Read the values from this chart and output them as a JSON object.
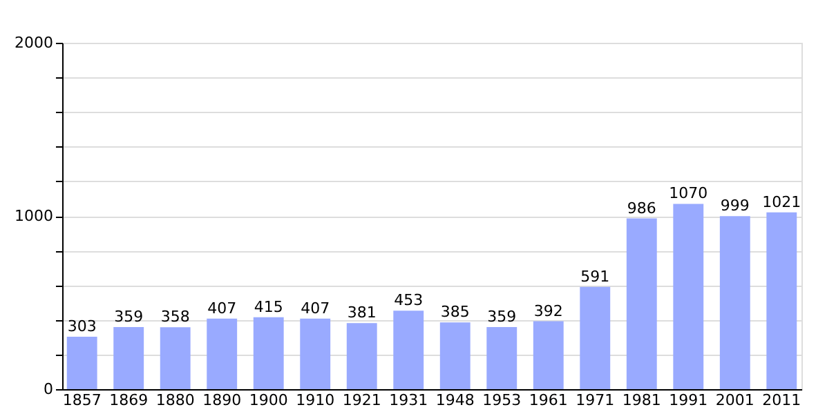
{
  "chart_data": {
    "type": "bar",
    "categories": [
      "1857",
      "1869",
      "1880",
      "1890",
      "1900",
      "1910",
      "1921",
      "1931",
      "1948",
      "1953",
      "1961",
      "1971",
      "1981",
      "1991",
      "2001",
      "2011"
    ],
    "values": [
      303,
      359,
      358,
      407,
      415,
      407,
      381,
      453,
      385,
      359,
      392,
      591,
      986,
      1070,
      999,
      1021
    ],
    "color": "#99aaff",
    "ylim": [
      0,
      2000
    ],
    "yticks": [
      0,
      {
        "value": 200,
        "label": null
      },
      {
        "value": 400,
        "label": null
      },
      {
        "value": 600,
        "label": null
      },
      {
        "value": 800,
        "label": null
      },
      1000,
      {
        "value": 1200,
        "label": null
      },
      {
        "value": 1400,
        "label": null
      },
      {
        "value": 1600,
        "label": null
      },
      {
        "value": 1800,
        "label": null
      },
      2000
    ],
    "grid": "y",
    "data_labels": true
  }
}
